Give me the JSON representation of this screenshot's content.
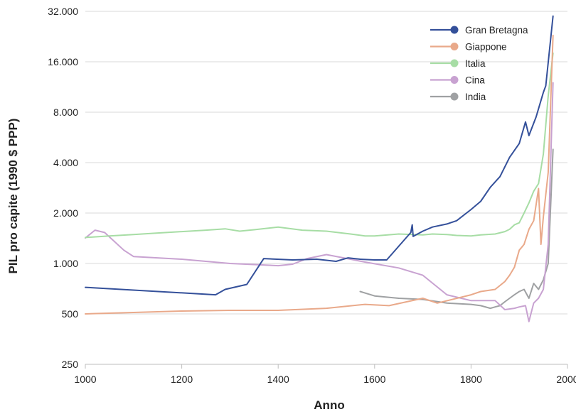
{
  "chart_data": {
    "type": "line",
    "title": "",
    "xlabel": "Anno",
    "ylabel": "PIL pro capite (1990 $ PPP)",
    "xlim": [
      1000,
      2000
    ],
    "ylim": [
      250,
      32000
    ],
    "yscale": "log2",
    "grid": "horizontal",
    "legend_position": "top-right",
    "x_ticks": [
      1000,
      1200,
      1400,
      1600,
      1800,
      2000
    ],
    "x_tick_labels": [
      "1000",
      "1200",
      "1400",
      "1600",
      "1800",
      "2000"
    ],
    "y_ticks": [
      250,
      500,
      1000,
      2000,
      4000,
      8000,
      16000,
      32000
    ],
    "y_tick_labels": [
      "250",
      "500",
      "1.000",
      "2.000",
      "4.000",
      "8.000",
      "16.000",
      "32.000"
    ],
    "series": [
      {
        "name": "Gran Bretagna",
        "color": "#34509a",
        "x": [
          1000,
          1270,
          1290,
          1335,
          1370,
          1430,
          1480,
          1520,
          1545,
          1570,
          1600,
          1625,
          1675,
          1678,
          1680,
          1700,
          1720,
          1750,
          1770,
          1800,
          1820,
          1840,
          1860,
          1880,
          1900,
          1913,
          1920,
          1935,
          1950,
          1955,
          1970
        ],
        "y": [
          720,
          650,
          700,
          750,
          1070,
          1050,
          1060,
          1030,
          1080,
          1060,
          1050,
          1050,
          1530,
          1700,
          1450,
          1560,
          1650,
          1720,
          1800,
          2100,
          2350,
          2850,
          3300,
          4300,
          5200,
          7000,
          5800,
          7500,
          10500,
          11500,
          30000
        ]
      },
      {
        "name": "Giappone",
        "color": "#e9a98a",
        "x": [
          1000,
          1100,
          1200,
          1300,
          1400,
          1500,
          1580,
          1630,
          1700,
          1730,
          1800,
          1820,
          1850,
          1870,
          1880,
          1890,
          1900,
          1910,
          1920,
          1930,
          1940,
          1945,
          1950,
          1960,
          1970
        ],
        "y": [
          500,
          510,
          520,
          525,
          525,
          540,
          570,
          560,
          620,
          580,
          650,
          680,
          700,
          780,
          850,
          950,
          1200,
          1300,
          1600,
          1800,
          2800,
          1300,
          1900,
          3500,
          23000
        ]
      },
      {
        "name": "Italia",
        "color": "#a7dda5",
        "x": [
          1000,
          1050,
          1100,
          1150,
          1200,
          1250,
          1290,
          1320,
          1350,
          1400,
          1450,
          1500,
          1550,
          1580,
          1600,
          1650,
          1700,
          1720,
          1750,
          1770,
          1800,
          1820,
          1850,
          1870,
          1880,
          1890,
          1900,
          1910,
          1920,
          1930,
          1940,
          1950,
          1960,
          1970
        ],
        "y": [
          1430,
          1460,
          1490,
          1520,
          1550,
          1580,
          1610,
          1560,
          1590,
          1650,
          1580,
          1560,
          1500,
          1460,
          1460,
          1500,
          1480,
          1500,
          1490,
          1470,
          1460,
          1480,
          1500,
          1550,
          1600,
          1700,
          1750,
          2000,
          2300,
          2700,
          3000,
          4500,
          10000,
          18000
        ]
      },
      {
        "name": "Cina",
        "color": "#c8a2d1",
        "x": [
          1000,
          1020,
          1040,
          1080,
          1100,
          1200,
          1300,
          1400,
          1430,
          1460,
          1500,
          1550,
          1580,
          1650,
          1700,
          1750,
          1800,
          1850,
          1870,
          1890,
          1900,
          1913,
          1920,
          1930,
          1940,
          1950,
          1960,
          1970
        ],
        "y": [
          1420,
          1580,
          1530,
          1200,
          1100,
          1060,
          1000,
          970,
          990,
          1070,
          1130,
          1060,
          1020,
          940,
          850,
          650,
          600,
          600,
          530,
          540,
          550,
          560,
          450,
          580,
          620,
          700,
          1300,
          12000
        ]
      },
      {
        "name": "India",
        "color": "#9fa1a3",
        "x": [
          1570,
          1600,
          1650,
          1700,
          1750,
          1800,
          1820,
          1840,
          1850,
          1860,
          1870,
          1880,
          1890,
          1900,
          1910,
          1920,
          1930,
          1940,
          1950,
          1960,
          1970
        ],
        "y": [
          680,
          640,
          620,
          610,
          580,
          570,
          560,
          540,
          550,
          560,
          590,
          620,
          650,
          680,
          700,
          620,
          760,
          700,
          800,
          1000,
          4800
        ]
      }
    ]
  }
}
